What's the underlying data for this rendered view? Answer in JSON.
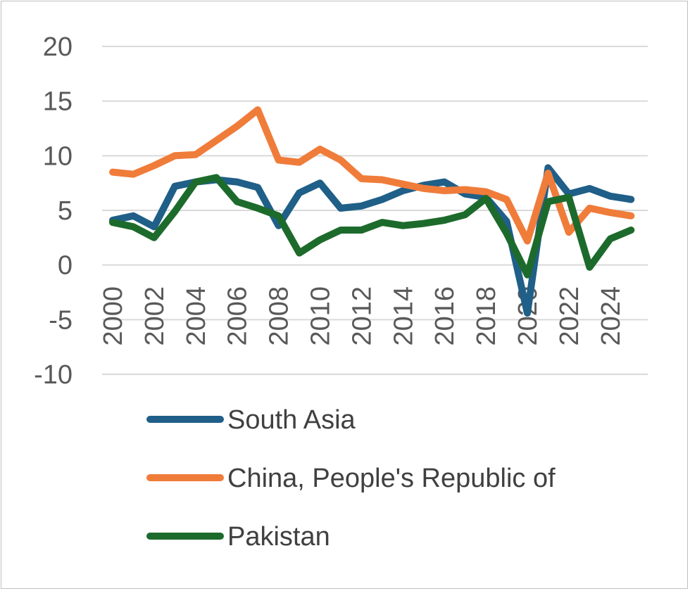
{
  "chart_data": {
    "type": "line",
    "title": "",
    "xlabel": "",
    "ylabel": "",
    "x": [
      2000,
      2001,
      2002,
      2003,
      2004,
      2005,
      2006,
      2007,
      2008,
      2009,
      2010,
      2011,
      2012,
      2013,
      2014,
      2015,
      2016,
      2017,
      2018,
      2019,
      2020,
      2021,
      2022,
      2023,
      2024,
      2025
    ],
    "x_tick_labels": [
      "2000",
      "2002",
      "2004",
      "2006",
      "2008",
      "2010",
      "2012",
      "2014",
      "2016",
      "2018",
      "2020",
      "2022",
      "2024"
    ],
    "y_tick_labels": [
      "20",
      "15",
      "10",
      "5",
      "0",
      "-5",
      "-10"
    ],
    "ylim": [
      -10,
      20
    ],
    "grid": true,
    "legend_position": "bottom",
    "series": [
      {
        "name": "South Asia",
        "color": "#1f5f88",
        "values": [
          4.1,
          4.5,
          3.5,
          7.2,
          7.6,
          7.8,
          7.6,
          7.1,
          3.6,
          6.6,
          7.5,
          5.2,
          5.4,
          6.0,
          6.8,
          7.3,
          7.6,
          6.5,
          6.2,
          4.0,
          -4.4,
          8.9,
          6.5,
          7.0,
          6.3,
          6.0
        ]
      },
      {
        "name": "China, People's Republic of",
        "color": "#f07c3a",
        "values": [
          8.5,
          8.3,
          9.1,
          10.0,
          10.1,
          11.4,
          12.7,
          14.2,
          9.6,
          9.4,
          10.6,
          9.6,
          7.9,
          7.8,
          7.4,
          7.0,
          6.8,
          6.9,
          6.7,
          6.0,
          2.2,
          8.4,
          3.0,
          5.2,
          4.8,
          4.5
        ]
      },
      {
        "name": "Pakistan",
        "color": "#1d6b2c",
        "values": [
          3.9,
          3.5,
          2.5,
          4.9,
          7.6,
          8.0,
          5.8,
          5.2,
          4.5,
          1.1,
          2.3,
          3.2,
          3.2,
          3.9,
          3.6,
          3.8,
          4.1,
          4.6,
          6.1,
          2.9,
          -0.9,
          5.8,
          6.2,
          -0.2,
          2.4,
          3.2
        ]
      }
    ]
  }
}
